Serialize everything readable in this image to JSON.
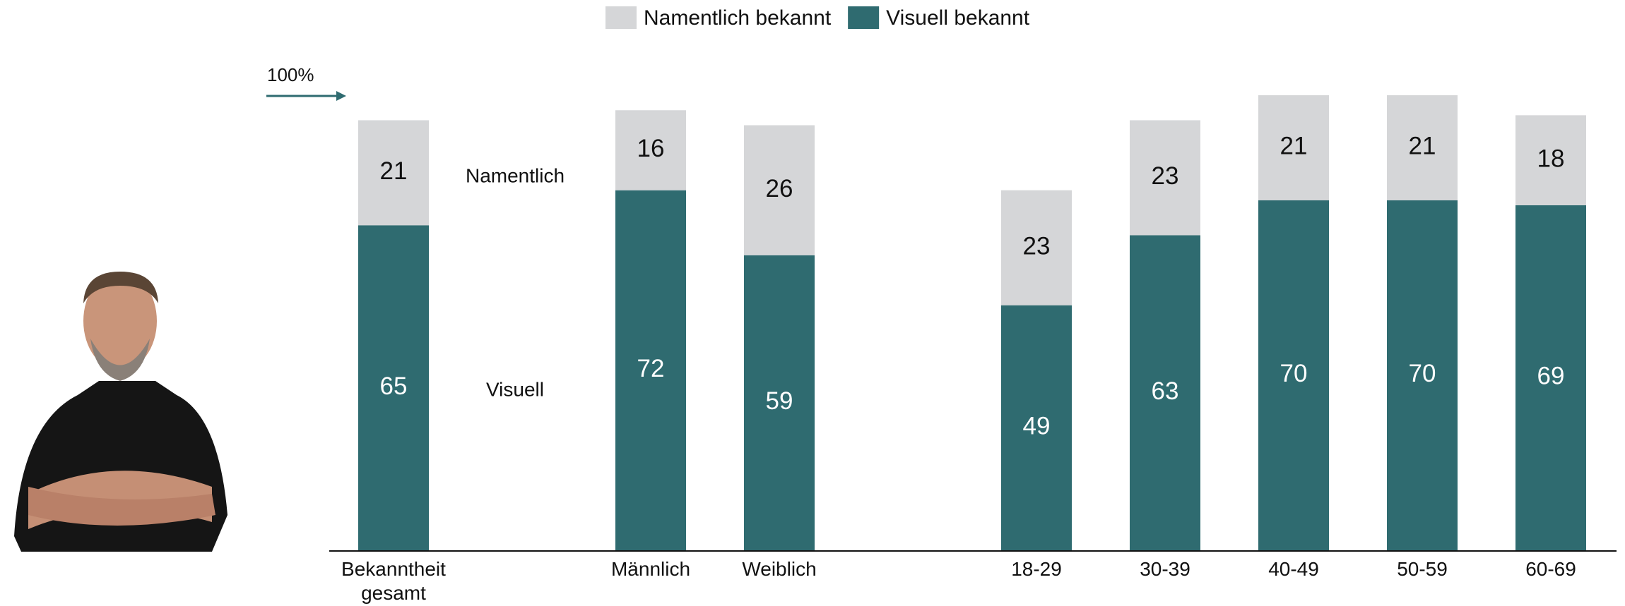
{
  "chart_data": {
    "type": "stacked_bar",
    "categories": [
      "Bekanntheit gesamt",
      null,
      "Männlich",
      "Weiblich",
      null,
      "18-29",
      "30-39",
      "40-49",
      "50-59",
      "60-69"
    ],
    "series": [
      {
        "name": "Visuell bekannt",
        "color": "#2f6b70",
        "values": [
          65,
          null,
          72,
          59,
          null,
          49,
          63,
          70,
          70,
          69
        ]
      },
      {
        "name": "Namentlich bekannt",
        "color": "#d5d6d8",
        "values": [
          21,
          null,
          16,
          26,
          null,
          23,
          23,
          21,
          21,
          18
        ]
      }
    ],
    "ylim": [
      0,
      91
    ],
    "annotations": [
      "100%",
      "Namentlich",
      "Visuell"
    ]
  }
}
